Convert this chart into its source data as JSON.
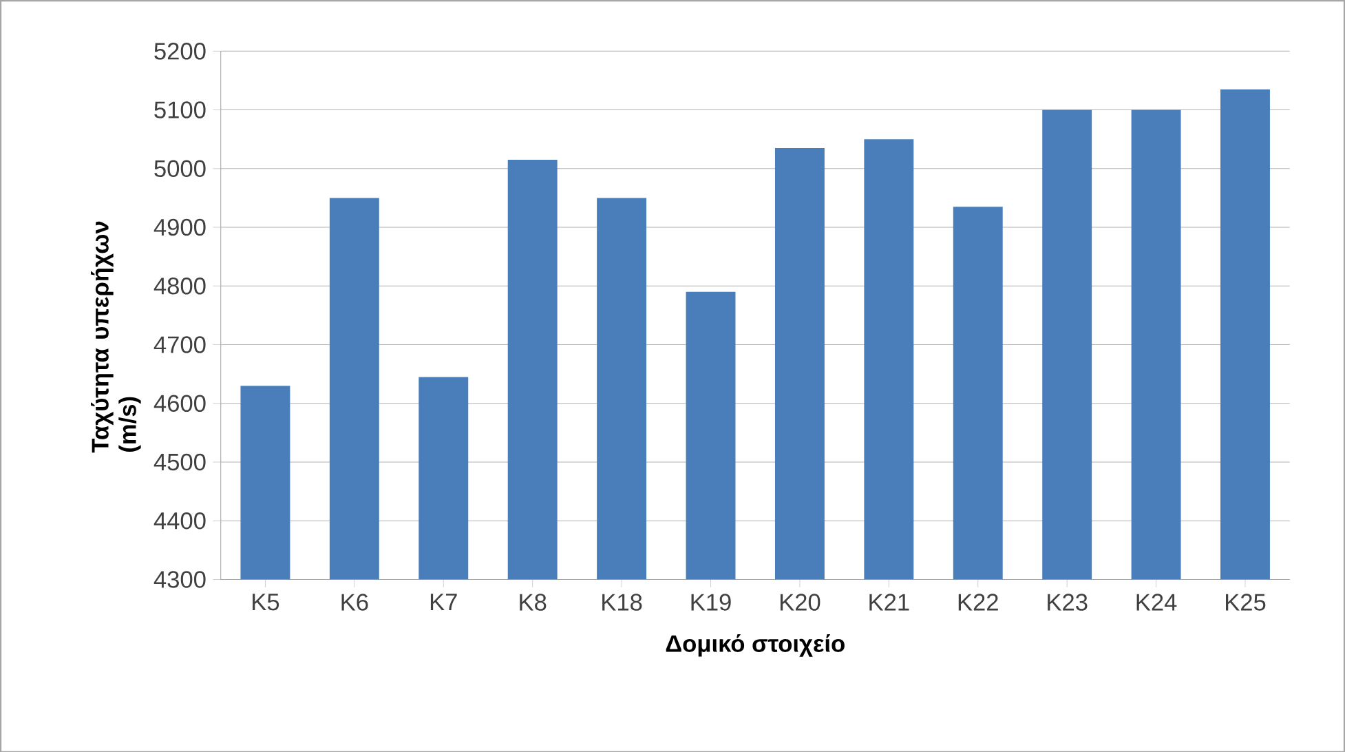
{
  "chart_data": {
    "type": "bar",
    "xlabel": "Δομικό στοιχείο",
    "ylabel": "Ταχύτητα υπερήχων (m/s)",
    "categories": [
      "K5",
      "K6",
      "K7",
      "K8",
      "K18",
      "K19",
      "K20",
      "K21",
      "K22",
      "K23",
      "K24",
      "K25"
    ],
    "values": [
      4630,
      4950,
      4645,
      5015,
      4950,
      4790,
      5035,
      5050,
      4935,
      5100,
      5100,
      5135
    ],
    "color": "#4a7ebb",
    "ylim": [
      4300,
      5200
    ],
    "yticks": [
      4300,
      4400,
      4500,
      4600,
      4700,
      4800,
      4900,
      5000,
      5100,
      5200
    ],
    "grid": "y"
  }
}
